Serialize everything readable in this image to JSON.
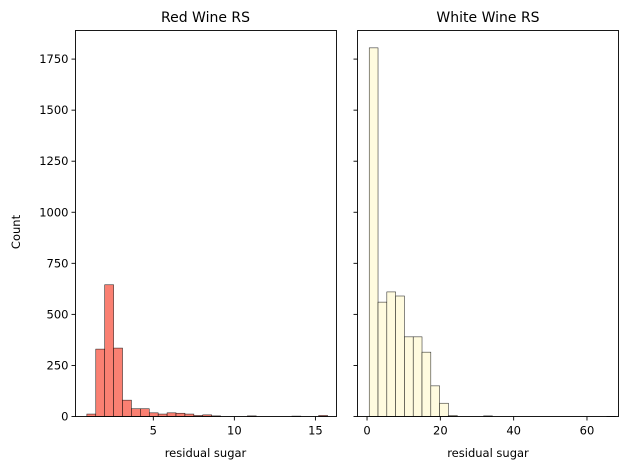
{
  "figure": {
    "ylabel": "Count"
  },
  "chart_data": [
    {
      "type": "bar",
      "title": "Red Wine RS",
      "xlabel": "residual sugar",
      "ylabel": "Count",
      "color": "#fa8072",
      "xlim": [
        0.2,
        16.3
      ],
      "ylim": [
        0,
        1890
      ],
      "xticks": [
        5,
        10,
        15
      ],
      "yticks": [
        0,
        250,
        500,
        750,
        1000,
        1250,
        1500,
        1750
      ],
      "bin_width": 0.55,
      "bins_start": [
        0.9,
        1.45,
        2.0,
        2.55,
        3.1,
        3.65,
        4.2,
        4.75,
        5.3,
        5.85,
        6.4,
        6.95,
        7.5,
        8.05,
        8.6,
        10.8,
        13.55,
        15.2
      ],
      "values": [
        12,
        330,
        645,
        335,
        80,
        38,
        38,
        18,
        12,
        18,
        16,
        12,
        5,
        8,
        3,
        3,
        2,
        5
      ]
    },
    {
      "type": "bar",
      "title": "White Wine RS",
      "xlabel": "residual sugar",
      "color": "#fffbdf",
      "xlim": [
        -2.6,
        68.6
      ],
      "ylim": [
        0,
        1890
      ],
      "xticks": [
        0,
        20,
        40,
        60
      ],
      "yticks": [
        0,
        250,
        500,
        750,
        1000,
        1250,
        1500,
        1750
      ],
      "bin_width": 2.4,
      "bins_start": [
        0.6,
        3.0,
        5.4,
        7.8,
        10.2,
        12.6,
        15.0,
        17.4,
        19.8,
        22.2,
        31.8,
        65.4
      ],
      "values": [
        1805,
        560,
        610,
        590,
        390,
        390,
        315,
        150,
        65,
        5,
        3,
        1
      ]
    }
  ]
}
